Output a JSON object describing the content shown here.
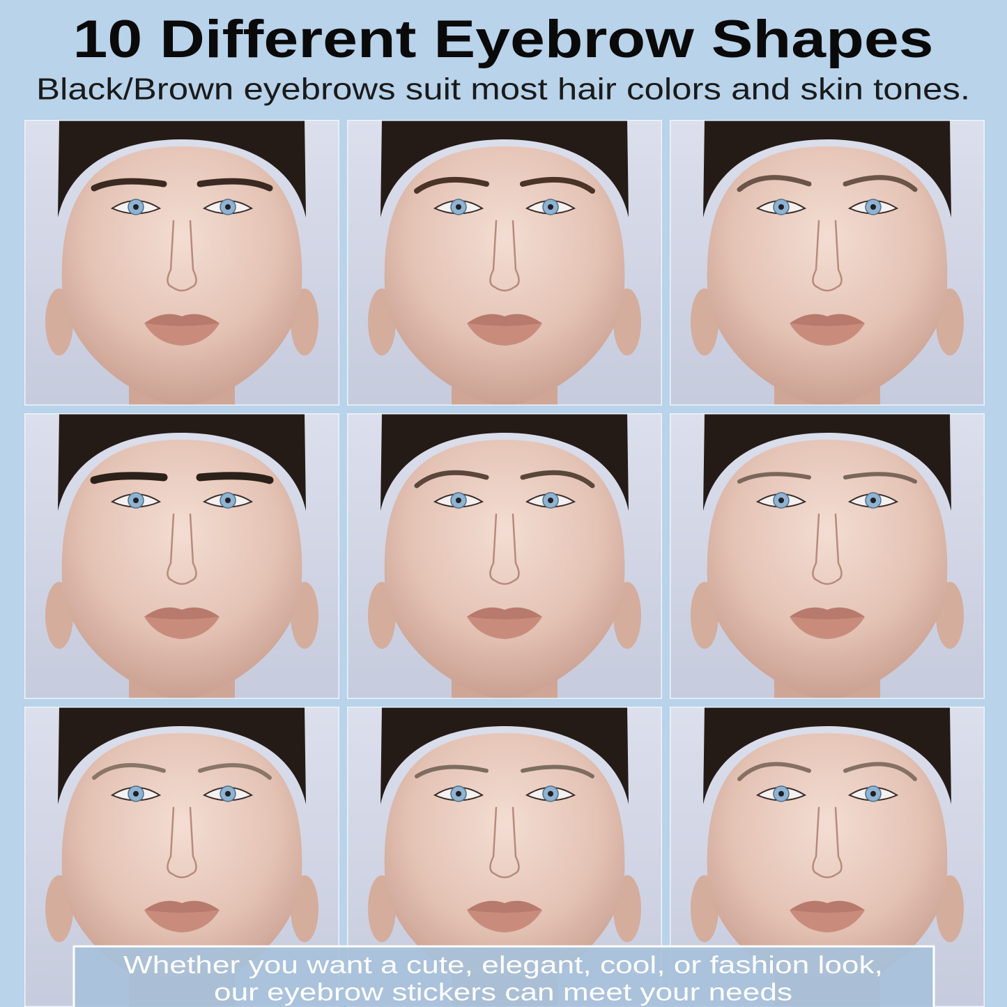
{
  "header": {
    "title": "10 Different Eyebrow Shapes",
    "subtitle": "Black/Brown eyebrows suit most hair colors and skin tones."
  },
  "footer": {
    "lines": [
      "Whether you want a cute, elegant, cool, or fashion look,",
      "our eyebrow stickers can meet your needs"
    ]
  }
}
